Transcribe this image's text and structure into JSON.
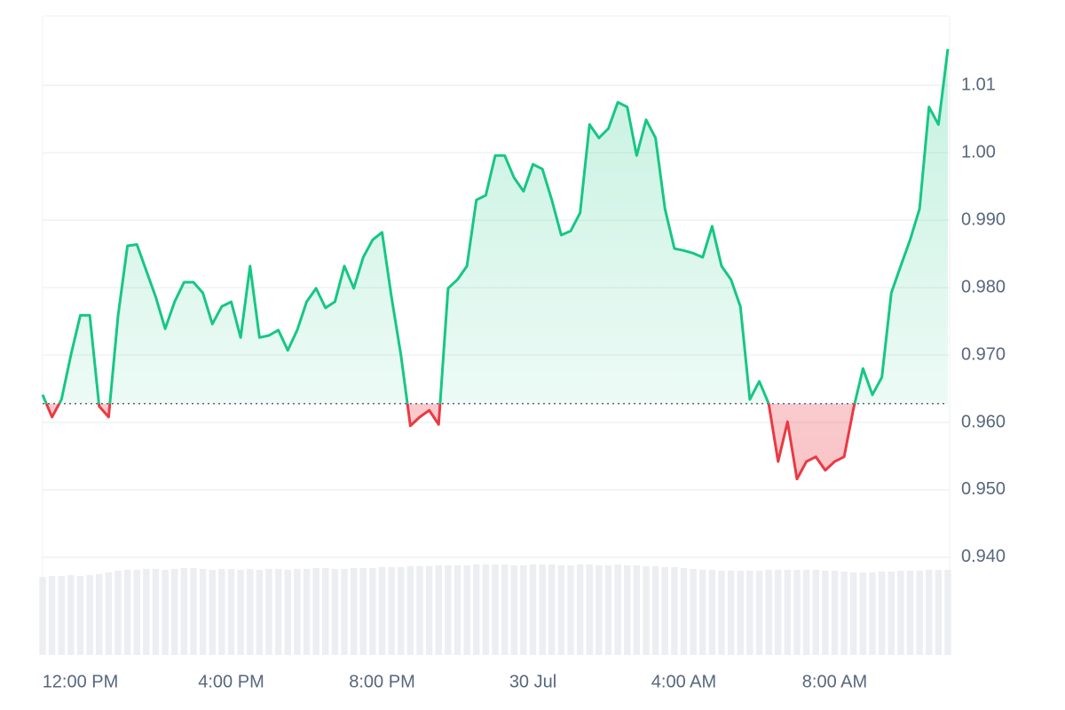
{
  "chart_data": {
    "type": "baseline-line",
    "categories": [
      null,
      null,
      null,
      null,
      "12:00 PM",
      null,
      null,
      null,
      null,
      null,
      null,
      null,
      null,
      null,
      null,
      null,
      null,
      null,
      null,
      null,
      "4:00 PM",
      null,
      null,
      null,
      null,
      null,
      null,
      null,
      null,
      null,
      null,
      null,
      null,
      null,
      null,
      null,
      "8:00 PM",
      null,
      null,
      null,
      null,
      null,
      null,
      null,
      null,
      null,
      null,
      null,
      null,
      null,
      null,
      null,
      "30 Jul",
      null,
      null,
      null,
      null,
      null,
      null,
      null,
      null,
      null,
      null,
      null,
      null,
      null,
      null,
      null,
      "4:00 AM",
      null,
      null,
      null,
      null,
      null,
      null,
      null,
      null,
      null,
      null,
      null,
      null,
      null,
      null,
      null,
      "8:00 AM",
      null,
      null,
      null,
      null,
      null,
      null,
      null,
      null,
      null,
      null,
      null,
      null
    ],
    "values": [
      0.9641,
      0.9608,
      0.9634,
      0.97,
      0.9759,
      0.9759,
      0.9624,
      0.9608,
      0.9758,
      0.9862,
      0.9864,
      0.9825,
      0.9786,
      0.9739,
      0.9779,
      0.9808,
      0.9808,
      0.9792,
      0.9746,
      0.9772,
      0.9779,
      0.9726,
      0.9832,
      0.9726,
      0.9729,
      0.9737,
      0.9707,
      0.9737,
      0.9779,
      0.9799,
      0.977,
      0.9779,
      0.9832,
      0.9799,
      0.9845,
      0.9871,
      0.9882,
      0.9786,
      0.97,
      0.9595,
      0.9608,
      0.9618,
      0.9597,
      0.9799,
      0.9812,
      0.9832,
      0.993,
      0.9937,
      0.9996,
      0.9996,
      0.9963,
      0.9943,
      0.9983,
      0.9976,
      0.993,
      0.9878,
      0.9884,
      0.9911,
      1.0042,
      1.0022,
      1.0036,
      1.0075,
      1.0068,
      0.9996,
      1.0049,
      1.0022,
      0.9917,
      0.9858,
      0.9855,
      0.9851,
      0.9845,
      0.9891,
      0.9832,
      0.9812,
      0.9772,
      0.9634,
      0.9661,
      0.9628,
      0.9542,
      0.9601,
      0.9516,
      0.9542,
      0.9549,
      0.9529,
      0.9542,
      0.9549,
      0.9621,
      0.968,
      0.9641,
      0.9667,
      0.9792,
      0.9832,
      0.9871,
      0.9917,
      1.0068,
      1.0042,
      1.0154
    ],
    "volume": [
      88,
      89,
      89,
      90,
      89,
      90,
      91,
      93,
      95,
      96,
      96,
      97,
      97,
      96,
      97,
      98,
      98,
      97,
      96,
      97,
      97,
      96,
      97,
      96,
      97,
      97,
      96,
      97,
      97,
      98,
      98,
      97,
      97,
      98,
      98,
      98,
      99,
      99,
      99,
      100,
      100,
      100,
      101,
      101,
      101,
      101,
      102,
      102,
      102,
      102,
      101,
      101,
      102,
      102,
      102,
      101,
      101,
      102,
      102,
      101,
      101,
      102,
      101,
      101,
      100,
      100,
      99,
      99,
      98,
      97,
      96,
      96,
      95,
      95,
      95,
      95,
      95,
      96,
      96,
      96,
      96,
      96,
      96,
      95,
      95,
      94,
      93,
      93,
      93,
      94,
      94,
      95,
      95,
      95,
      96,
      96,
      96
    ],
    "baseline": 0.9628,
    "ylim": [
      0.9255,
      1.0203
    ],
    "yticks": [
      {
        "value": 0.94,
        "label": "0.940"
      },
      {
        "value": 0.95,
        "label": "0.950"
      },
      {
        "value": 0.96,
        "label": "0.960"
      },
      {
        "value": 0.97,
        "label": "0.970"
      },
      {
        "value": 0.98,
        "label": "0.980"
      },
      {
        "value": 0.99,
        "label": "0.990"
      },
      {
        "value": 1.0,
        "label": "1.00"
      },
      1.01
    ],
    "grid": true,
    "up_color": "#16c784",
    "down_color": "#ea3943",
    "volume_color": "#eceef2"
  }
}
